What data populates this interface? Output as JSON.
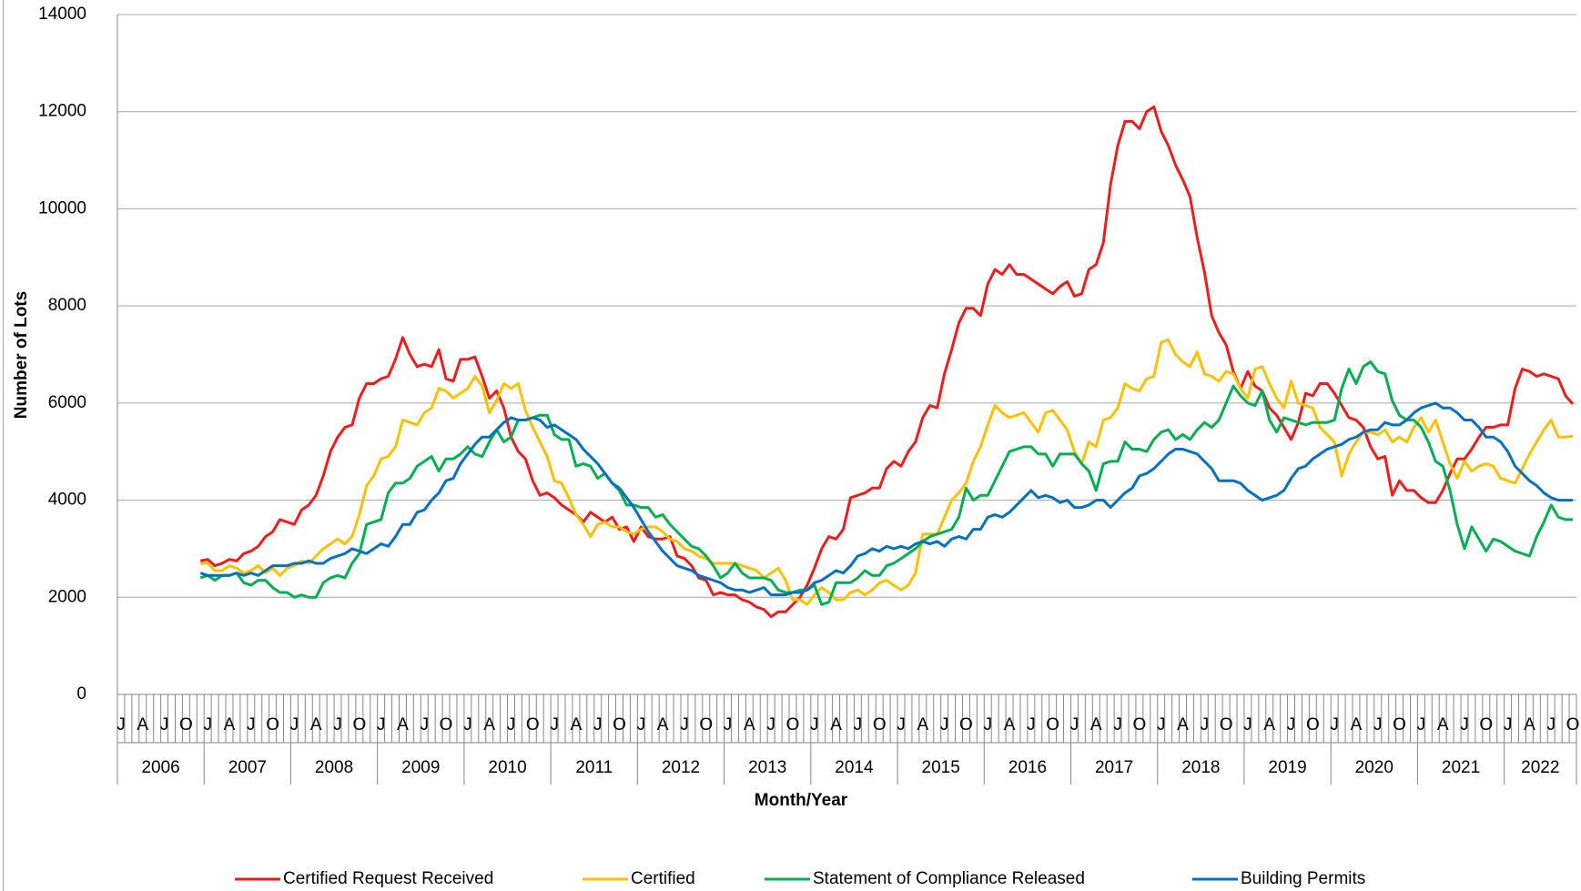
{
  "chart_data": {
    "type": "line",
    "y_label": "Number of Lots",
    "x_label": "Month/Year",
    "years": [
      2006,
      2007,
      2008,
      2009,
      2010,
      2011,
      2012,
      2013,
      2014,
      2015,
      2016,
      2017,
      2018,
      2019,
      2020,
      2021,
      2022
    ],
    "months": [
      "J",
      null,
      null,
      "A",
      null,
      null,
      "J",
      null,
      null,
      "O",
      null,
      null
    ],
    "ylim": [
      0,
      14000
    ],
    "yticks": [
      0,
      2000,
      4000,
      6000,
      8000,
      10000,
      12000,
      14000
    ],
    "grid": true,
    "series": [
      {
        "name": "Certified Request Received",
        "color": "#ee1c1c",
        "values": [
          null,
          null,
          null,
          null,
          null,
          null,
          null,
          null,
          null,
          null,
          null,
          2750,
          2780,
          2650,
          2700,
          2780,
          2750,
          2900,
          2950,
          3050,
          3250,
          3350,
          3600,
          3550,
          3500,
          3800,
          3900,
          4100,
          4500,
          5000,
          5300,
          5500,
          5550,
          6100,
          6400,
          6400,
          6500,
          6550,
          6900,
          7350,
          7000,
          6750,
          6800,
          6750,
          7100,
          6500,
          6450,
          6900,
          6900,
          6950,
          6550,
          6100,
          6250,
          5900,
          5300,
          5000,
          4850,
          4400,
          4100,
          4150,
          4050,
          3900,
          3800,
          3700,
          3550,
          3750,
          3650,
          3550,
          3650,
          3400,
          3450,
          3150,
          3450,
          3250,
          3200,
          3200,
          3250,
          2850,
          2800,
          2650,
          2400,
          2350,
          2050,
          2100,
          2050,
          2050,
          1950,
          1900,
          1800,
          1750,
          1600,
          1700,
          1700,
          1850,
          2000,
          2250,
          2600,
          3000,
          3250,
          3200,
          3400,
          4050,
          4100,
          4150,
          4250,
          4250,
          4650,
          4800,
          4700,
          5000,
          5200,
          5700,
          5950,
          5900,
          6600,
          7100,
          7650,
          7950,
          7950,
          7800,
          8450,
          8750,
          8650,
          8850,
          8650,
          8650,
          8550,
          8450,
          8350,
          8250,
          8400,
          8500,
          8200,
          8250,
          8750,
          8850,
          9300,
          10500,
          11300,
          11800,
          11800,
          11650,
          12000,
          12100,
          11600,
          11300,
          10900,
          10600,
          10250,
          9400,
          8700,
          7800,
          7450,
          7200,
          6650,
          6300,
          6650,
          6350,
          6250,
          5900,
          5750,
          5500,
          5250,
          5600,
          6200,
          6150,
          6400,
          6400,
          6200,
          5950,
          5700,
          5650,
          5500,
          5100,
          4850,
          4900,
          4100,
          4400,
          4200,
          4200,
          4050,
          3950,
          3950,
          4200,
          4550,
          4850,
          4850,
          5050,
          5300,
          5500,
          5500,
          5550,
          5550,
          6300,
          6700,
          6650,
          6550,
          6600,
          6550,
          6500,
          6150,
          5980
        ]
      },
      {
        "name": "Certified",
        "color": "#ffc000",
        "values": [
          null,
          null,
          null,
          null,
          null,
          null,
          null,
          null,
          null,
          null,
          null,
          2700,
          2700,
          2550,
          2550,
          2650,
          2600,
          2500,
          2550,
          2650,
          2500,
          2600,
          2450,
          2600,
          2650,
          2750,
          2700,
          2850,
          3000,
          3100,
          3200,
          3100,
          3250,
          3700,
          4300,
          4500,
          4850,
          4900,
          5100,
          5650,
          5600,
          5550,
          5800,
          5900,
          6300,
          6250,
          6100,
          6200,
          6300,
          6550,
          6350,
          5800,
          6050,
          6400,
          6300,
          6400,
          5850,
          5500,
          5200,
          4900,
          4400,
          4350,
          4050,
          3700,
          3500,
          3250,
          3500,
          3550,
          3450,
          3450,
          3350,
          3300,
          3400,
          3450,
          3450,
          3350,
          3200,
          3150,
          3000,
          2950,
          2850,
          2800,
          2700,
          2700,
          2700,
          2700,
          2650,
          2600,
          2550,
          2400,
          2500,
          2600,
          2350,
          1950,
          1950,
          1850,
          2050,
          2200,
          2100,
          1950,
          1950,
          2100,
          2150,
          2050,
          2150,
          2300,
          2350,
          2250,
          2150,
          2250,
          2500,
          3300,
          3300,
          3300,
          3650,
          4000,
          4150,
          4350,
          4800,
          5100,
          5550,
          5950,
          5800,
          5700,
          5750,
          5800,
          5600,
          5400,
          5800,
          5850,
          5650,
          5450,
          5000,
          4750,
          5200,
          5100,
          5650,
          5700,
          5900,
          6400,
          6300,
          6250,
          6500,
          6550,
          7250,
          7300,
          7000,
          6850,
          6750,
          7050,
          6600,
          6550,
          6450,
          6650,
          6600,
          6300,
          6100,
          6700,
          6750,
          6400,
          6100,
          5900,
          6450,
          6000,
          5950,
          5900,
          5500,
          5350,
          5200,
          4500,
          4950,
          5200,
          5400,
          5400,
          5350,
          5450,
          5200,
          5300,
          5200,
          5500,
          5700,
          5400,
          5650,
          5200,
          4750,
          4450,
          4800,
          4600,
          4700,
          4750,
          4700,
          4450,
          4400,
          4350,
          4650,
          4950,
          5200,
          5450,
          5650,
          5300,
          5300,
          5320
        ]
      },
      {
        "name": "Statement of Compliance Released",
        "color": "#00b050",
        "values": [
          null,
          null,
          null,
          null,
          null,
          null,
          null,
          null,
          null,
          null,
          null,
          2400,
          2450,
          2350,
          2450,
          2450,
          2500,
          2300,
          2250,
          2350,
          2350,
          2200,
          2100,
          2100,
          2000,
          2050,
          2000,
          2000,
          2300,
          2400,
          2450,
          2400,
          2700,
          2900,
          3500,
          3550,
          3600,
          4150,
          4350,
          4350,
          4450,
          4700,
          4800,
          4900,
          4600,
          4850,
          4850,
          4950,
          5100,
          4950,
          4900,
          5200,
          5450,
          5200,
          5300,
          5650,
          5650,
          5700,
          5750,
          5750,
          5350,
          5250,
          5250,
          4700,
          4750,
          4700,
          4450,
          4550,
          4350,
          4200,
          3900,
          3900,
          3850,
          3850,
          3650,
          3700,
          3500,
          3350,
          3200,
          3050,
          3000,
          2850,
          2650,
          2400,
          2500,
          2700,
          2500,
          2400,
          2400,
          2400,
          2350,
          2150,
          2100,
          2100,
          2150,
          2150,
          2250,
          1850,
          1900,
          2300,
          2300,
          2300,
          2400,
          2550,
          2450,
          2450,
          2650,
          2700,
          2800,
          2900,
          3000,
          3150,
          3250,
          3300,
          3350,
          3400,
          3650,
          4250,
          4000,
          4100,
          4100,
          4400,
          4700,
          5000,
          5050,
          5100,
          5100,
          4950,
          4950,
          4700,
          4950,
          4950,
          4950,
          4750,
          4600,
          4200,
          4750,
          4800,
          4800,
          5200,
          5050,
          5050,
          5000,
          5250,
          5400,
          5450,
          5250,
          5350,
          5250,
          5450,
          5600,
          5500,
          5650,
          6000,
          6350,
          6150,
          6000,
          5950,
          6250,
          5650,
          5400,
          5700,
          5650,
          5600,
          5550,
          5600,
          5600,
          5600,
          5650,
          6300,
          6700,
          6400,
          6750,
          6850,
          6650,
          6600,
          6050,
          5750,
          5650,
          5650,
          5500,
          5200,
          4800,
          4700,
          4200,
          3500,
          3000,
          3450,
          3200,
          2950,
          3200,
          3150,
          3050,
          2950,
          2900,
          2850,
          3250,
          3550,
          3900,
          3650,
          3600,
          3600
        ]
      },
      {
        "name": "Building Permits",
        "color": "#0070c0",
        "values": [
          null,
          null,
          null,
          null,
          null,
          null,
          null,
          null,
          null,
          null,
          null,
          2500,
          2450,
          2450,
          2450,
          2450,
          2500,
          2450,
          2500,
          2450,
          2550,
          2650,
          2650,
          2650,
          2700,
          2700,
          2750,
          2700,
          2700,
          2800,
          2850,
          2900,
          3000,
          2950,
          2900,
          3000,
          3100,
          3050,
          3250,
          3500,
          3500,
          3750,
          3800,
          4000,
          4150,
          4400,
          4450,
          4750,
          4950,
          5150,
          5300,
          5300,
          5450,
          5600,
          5700,
          5650,
          5650,
          5700,
          5650,
          5500,
          5550,
          5450,
          5350,
          5250,
          5050,
          4900,
          4750,
          4550,
          4350,
          4250,
          4050,
          3850,
          3600,
          3350,
          3150,
          2950,
          2800,
          2650,
          2600,
          2550,
          2450,
          2400,
          2350,
          2300,
          2200,
          2150,
          2150,
          2100,
          2150,
          2200,
          2050,
          2050,
          2050,
          2100,
          2100,
          2150,
          2300,
          2350,
          2450,
          2550,
          2500,
          2650,
          2850,
          2900,
          3000,
          2950,
          3050,
          3000,
          3050,
          3000,
          3100,
          3150,
          3100,
          3150,
          3050,
          3200,
          3250,
          3200,
          3400,
          3400,
          3650,
          3700,
          3650,
          3750,
          3900,
          4050,
          4200,
          4050,
          4100,
          4050,
          3950,
          4000,
          3850,
          3850,
          3900,
          4000,
          4000,
          3850,
          4000,
          4150,
          4250,
          4500,
          4550,
          4650,
          4800,
          4950,
          5050,
          5050,
          5000,
          4950,
          4800,
          4650,
          4400,
          4400,
          4400,
          4350,
          4200,
          4100,
          4000,
          4050,
          4100,
          4200,
          4450,
          4650,
          4700,
          4850,
          4950,
          5050,
          5100,
          5150,
          5250,
          5300,
          5400,
          5450,
          5450,
          5600,
          5550,
          5550,
          5650,
          5800,
          5900,
          5950,
          6000,
          5900,
          5900,
          5800,
          5650,
          5650,
          5500,
          5300,
          5300,
          5200,
          5000,
          4700,
          4550,
          4400,
          4300,
          4150,
          4050,
          4000,
          4000,
          4000
        ]
      }
    ]
  }
}
